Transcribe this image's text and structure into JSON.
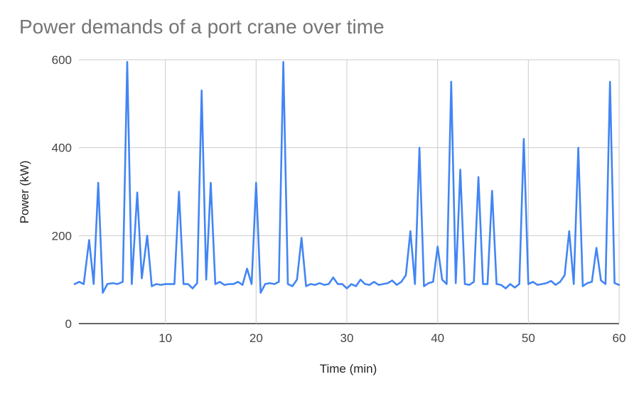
{
  "chart_data": {
    "type": "line",
    "title": "Power demands of a port crane over time",
    "xlabel": "Time (min)",
    "ylabel": "Power (kW)",
    "xlim": [
      0,
      60
    ],
    "ylim": [
      0,
      600
    ],
    "x_ticks": [
      10,
      20,
      30,
      40,
      50,
      60
    ],
    "y_ticks": [
      0,
      200,
      400,
      600
    ],
    "grid": true,
    "legend": "none",
    "series": [
      {
        "color": "#4285f4",
        "points": [
          [
            0.0,
            90
          ],
          [
            0.5,
            95
          ],
          [
            1.0,
            90
          ],
          [
            1.6,
            190
          ],
          [
            2.1,
            90
          ],
          [
            2.6,
            320
          ],
          [
            3.1,
            70
          ],
          [
            3.6,
            90
          ],
          [
            4.2,
            92
          ],
          [
            4.7,
            90
          ],
          [
            5.3,
            95
          ],
          [
            5.8,
            595
          ],
          [
            6.3,
            90
          ],
          [
            6.9,
            298
          ],
          [
            7.4,
            103
          ],
          [
            8.0,
            200
          ],
          [
            8.5,
            85
          ],
          [
            9.0,
            90
          ],
          [
            9.5,
            88
          ],
          [
            10.0,
            90
          ],
          [
            10.5,
            90
          ],
          [
            11.0,
            90
          ],
          [
            11.5,
            300
          ],
          [
            12.0,
            90
          ],
          [
            12.5,
            90
          ],
          [
            13.0,
            80
          ],
          [
            13.5,
            92
          ],
          [
            14.0,
            530
          ],
          [
            14.5,
            100
          ],
          [
            15.0,
            320
          ],
          [
            15.5,
            90
          ],
          [
            16.0,
            95
          ],
          [
            16.5,
            88
          ],
          [
            17.0,
            90
          ],
          [
            17.5,
            90
          ],
          [
            18.0,
            95
          ],
          [
            18.5,
            88
          ],
          [
            19.0,
            125
          ],
          [
            19.5,
            90
          ],
          [
            20.0,
            320
          ],
          [
            20.5,
            70
          ],
          [
            21.0,
            90
          ],
          [
            21.5,
            92
          ],
          [
            22.0,
            90
          ],
          [
            22.5,
            95
          ],
          [
            23.0,
            595
          ],
          [
            23.5,
            90
          ],
          [
            24.0,
            85
          ],
          [
            24.5,
            100
          ],
          [
            25.0,
            195
          ],
          [
            25.5,
            85
          ],
          [
            26.0,
            90
          ],
          [
            26.5,
            88
          ],
          [
            27.0,
            92
          ],
          [
            27.5,
            88
          ],
          [
            28.0,
            90
          ],
          [
            28.5,
            105
          ],
          [
            29.0,
            90
          ],
          [
            29.5,
            90
          ],
          [
            30.0,
            80
          ],
          [
            30.5,
            90
          ],
          [
            31.0,
            85
          ],
          [
            31.5,
            100
          ],
          [
            32.0,
            90
          ],
          [
            32.5,
            88
          ],
          [
            33.0,
            95
          ],
          [
            33.5,
            88
          ],
          [
            34.0,
            90
          ],
          [
            34.5,
            92
          ],
          [
            35.0,
            98
          ],
          [
            35.5,
            88
          ],
          [
            36.0,
            95
          ],
          [
            36.5,
            110
          ],
          [
            37.0,
            210
          ],
          [
            37.5,
            90
          ],
          [
            38.0,
            400
          ],
          [
            38.5,
            85
          ],
          [
            39.0,
            92
          ],
          [
            39.5,
            95
          ],
          [
            40.0,
            175
          ],
          [
            40.5,
            100
          ],
          [
            41.0,
            90
          ],
          [
            41.5,
            550
          ],
          [
            42.0,
            92
          ],
          [
            42.5,
            350
          ],
          [
            43.0,
            90
          ],
          [
            43.5,
            88
          ],
          [
            44.0,
            95
          ],
          [
            44.5,
            333
          ],
          [
            45.0,
            90
          ],
          [
            45.5,
            90
          ],
          [
            46.0,
            302
          ],
          [
            46.5,
            90
          ],
          [
            47.0,
            88
          ],
          [
            47.5,
            80
          ],
          [
            48.0,
            90
          ],
          [
            48.5,
            82
          ],
          [
            49.0,
            90
          ],
          [
            49.5,
            420
          ],
          [
            50.0,
            90
          ],
          [
            50.5,
            95
          ],
          [
            51.0,
            88
          ],
          [
            51.5,
            90
          ],
          [
            52.0,
            92
          ],
          [
            52.5,
            97
          ],
          [
            53.0,
            88
          ],
          [
            53.5,
            95
          ],
          [
            54.0,
            110
          ],
          [
            54.5,
            210
          ],
          [
            55.0,
            90
          ],
          [
            55.5,
            400
          ],
          [
            56.0,
            85
          ],
          [
            56.5,
            92
          ],
          [
            57.0,
            95
          ],
          [
            57.5,
            172
          ],
          [
            58.0,
            98
          ],
          [
            58.5,
            90
          ],
          [
            59.0,
            550
          ],
          [
            59.5,
            92
          ],
          [
            60.0,
            88
          ]
        ]
      }
    ]
  },
  "style": {
    "line_color": "#4285f4",
    "grid_color": "#cccccc",
    "axis_color": "#333333"
  }
}
